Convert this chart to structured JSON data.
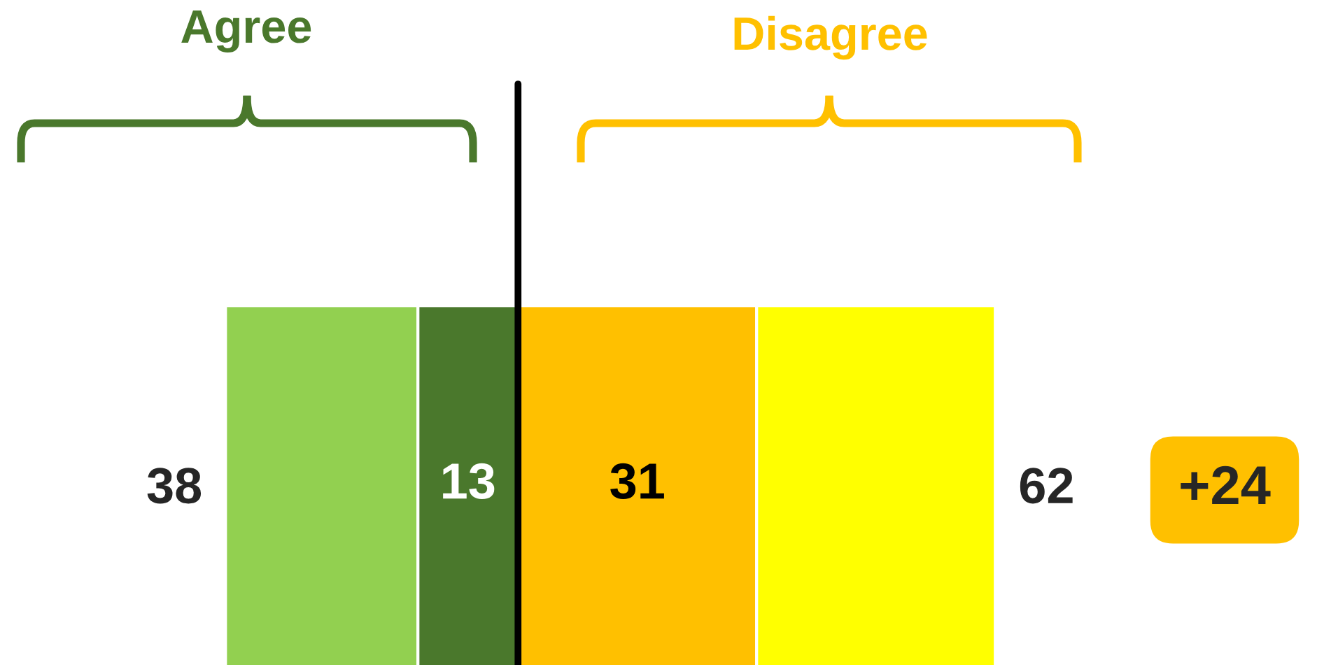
{
  "chart_data": {
    "type": "bar",
    "orientation": "horizontal",
    "stacked": true,
    "categories": [
      null
    ],
    "series": [
      {
        "color": "#92d050",
        "values": [
          25
        ],
        "value_labels": [
          null
        ]
      },
      {
        "color": "#4a782c",
        "values": [
          13
        ],
        "value_labels": [
          "13"
        ]
      },
      {
        "color": "#ffc000",
        "values": [
          31
        ],
        "value_labels": [
          "31"
        ]
      },
      {
        "color": "#ffff00",
        "values": [
          31
        ],
        "value_labels": [
          null
        ]
      }
    ],
    "ref_lines": [
      {
        "axis": "x",
        "value": 38,
        "color": "#000000"
      }
    ],
    "annotations": [
      "Agree",
      "Disagree",
      "38",
      "62",
      "+24"
    ]
  }
}
